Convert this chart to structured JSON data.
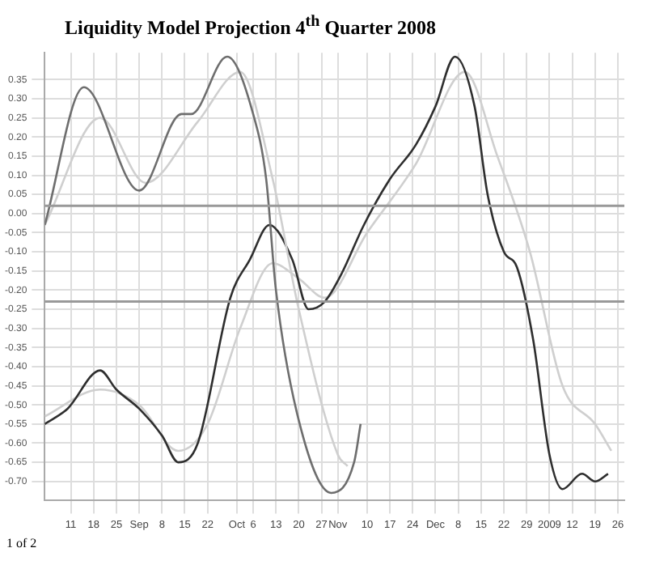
{
  "chart_data": {
    "type": "line",
    "title": "Liquidity Model Projection 4$^{th}$ Quarter 2008",
    "series": [
      {
        "color": "#6e6e6e",
        "x": [
          "2008-08-03",
          "2008-08-15",
          "2008-09-01",
          "2008-09-14",
          "2008-09-17",
          "2008-09-28",
          "2008-10-06",
          "2008-10-10",
          "2008-10-13",
          "2008-10-20",
          "2008-10-30",
          "2008-11-06",
          "2008-11-08"
        ],
        "values": [
          -0.03,
          0.33,
          0.06,
          0.26,
          0.26,
          0.41,
          0.26,
          0.09,
          -0.2,
          -0.54,
          -0.73,
          -0.65,
          -0.55
        ]
      },
      {
        "color": "#cfcfcf",
        "x": [
          "2008-08-03",
          "2008-08-20",
          "2008-09-03",
          "2008-09-19",
          "2008-10-02",
          "2008-10-12",
          "2008-10-20",
          "2008-11-01",
          "2008-11-04"
        ],
        "values": [
          -0.03,
          0.25,
          0.08,
          0.24,
          0.37,
          0.09,
          -0.25,
          -0.63,
          -0.66
        ]
      },
      {
        "color": "#2e2e2e",
        "x": [
          "2008-08-03",
          "2008-08-10",
          "2008-08-20",
          "2008-08-25",
          "2008-09-01",
          "2008-09-08",
          "2008-09-13",
          "2008-09-19",
          "2008-09-29",
          "2008-10-05",
          "2008-10-11",
          "2008-10-18",
          "2008-10-23",
          "2008-10-28",
          "2008-11-02",
          "2008-11-09",
          "2008-11-17",
          "2008-11-25",
          "2008-12-01",
          "2008-12-07",
          "2008-12-13",
          "2008-12-17",
          "2008-12-22",
          "2008-12-26",
          "2008-12-31",
          "2009-01-05",
          "2009-01-09",
          "2009-01-15",
          "2009-01-19",
          "2009-01-23"
        ],
        "values": [
          -0.55,
          -0.51,
          -0.41,
          -0.46,
          -0.51,
          -0.58,
          -0.65,
          -0.6,
          -0.22,
          -0.12,
          -0.03,
          -0.12,
          -0.25,
          -0.23,
          -0.16,
          -0.03,
          0.09,
          0.18,
          0.28,
          0.41,
          0.28,
          0.05,
          -0.1,
          -0.14,
          -0.33,
          -0.63,
          -0.72,
          -0.68,
          -0.7,
          -0.68
        ]
      },
      {
        "color": "#cfcfcf",
        "x": [
          "2008-08-03",
          "2008-08-20",
          "2008-09-01",
          "2008-09-13",
          "2008-09-22",
          "2008-10-02",
          "2008-10-12",
          "2008-10-20",
          "2008-10-28",
          "2008-11-10",
          "2008-11-25",
          "2008-12-10",
          "2008-12-20",
          "2008-12-30",
          "2009-01-09",
          "2009-01-19",
          "2009-01-24"
        ],
        "values": [
          -0.53,
          -0.46,
          -0.5,
          -0.62,
          -0.55,
          -0.3,
          -0.13,
          -0.17,
          -0.22,
          -0.05,
          0.13,
          0.37,
          0.15,
          -0.1,
          -0.45,
          -0.55,
          -0.62
        ]
      }
    ],
    "xlim": [
      "2008-08-03",
      "2009-01-28"
    ],
    "xticks": [
      {
        "value": "2008-08-11",
        "label": "11"
      },
      {
        "value": "2008-08-18",
        "label": "18"
      },
      {
        "value": "2008-08-25",
        "label": "25"
      },
      {
        "value": "2008-09-01",
        "label": "Sep"
      },
      {
        "value": "2008-09-08",
        "label": "8"
      },
      {
        "value": "2008-09-15",
        "label": "15"
      },
      {
        "value": "2008-09-22",
        "label": "22"
      },
      {
        "value": "2008-10-01",
        "label": "Oct"
      },
      {
        "value": "2008-10-06",
        "label": "6"
      },
      {
        "value": "2008-10-13",
        "label": "13"
      },
      {
        "value": "2008-10-20",
        "label": "20"
      },
      {
        "value": "2008-10-27",
        "label": "27"
      },
      {
        "value": "2008-11-01",
        "label": "Nov"
      },
      {
        "value": "2008-11-10",
        "label": "10"
      },
      {
        "value": "2008-11-17",
        "label": "17"
      },
      {
        "value": "2008-11-24",
        "label": "24"
      },
      {
        "value": "2008-12-01",
        "label": "Dec"
      },
      {
        "value": "2008-12-08",
        "label": "8"
      },
      {
        "value": "2008-12-15",
        "label": "15"
      },
      {
        "value": "2008-12-22",
        "label": "22"
      },
      {
        "value": "2008-12-29",
        "label": "29"
      },
      {
        "value": "2009-01-05",
        "label": "2009"
      },
      {
        "value": "2009-01-12",
        "label": "12"
      },
      {
        "value": "2009-01-19",
        "label": "19"
      },
      {
        "value": "2009-01-26",
        "label": "26"
      }
    ],
    "ylim": [
      -0.75,
      0.42
    ],
    "yticks": [
      {
        "value": 0.35,
        "label": "0.35"
      },
      {
        "value": 0.3,
        "label": "0.30"
      },
      {
        "value": 0.25,
        "label": "0.25"
      },
      {
        "value": 0.2,
        "label": "0.20"
      },
      {
        "value": 0.15,
        "label": "0.15"
      },
      {
        "value": 0.1,
        "label": "0.10"
      },
      {
        "value": 0.05,
        "label": "0.05"
      },
      {
        "value": 0,
        "label": "0.00"
      },
      {
        "value": -0.05,
        "label": "-0.05"
      },
      {
        "value": -0.1,
        "label": "-0.10"
      },
      {
        "value": -0.15,
        "label": "-0.15"
      },
      {
        "value": -0.2,
        "label": "-0.20"
      },
      {
        "value": -0.25,
        "label": "-0.25"
      },
      {
        "value": -0.3,
        "label": "-0.30"
      },
      {
        "value": -0.35,
        "label": "-0.35"
      },
      {
        "value": -0.4,
        "label": "-0.40"
      },
      {
        "value": -0.45,
        "label": "-0.45"
      },
      {
        "value": -0.5,
        "label": "-0.50"
      },
      {
        "value": -0.55,
        "label": "-0.55"
      },
      {
        "value": -0.6,
        "label": "-0.60"
      },
      {
        "value": -0.65,
        "label": "-0.65"
      },
      {
        "value": -0.7,
        "label": "-0.70"
      }
    ],
    "ref_lines": [
      {
        "axis": "y",
        "value": 0.02,
        "color": "#999999"
      },
      {
        "axis": "y",
        "value": -0.23,
        "color": "#999999"
      }
    ],
    "grid": true,
    "legend": false,
    "marker": "none",
    "line_style": "solid",
    "annotations": [
      "1 of 2"
    ]
  }
}
